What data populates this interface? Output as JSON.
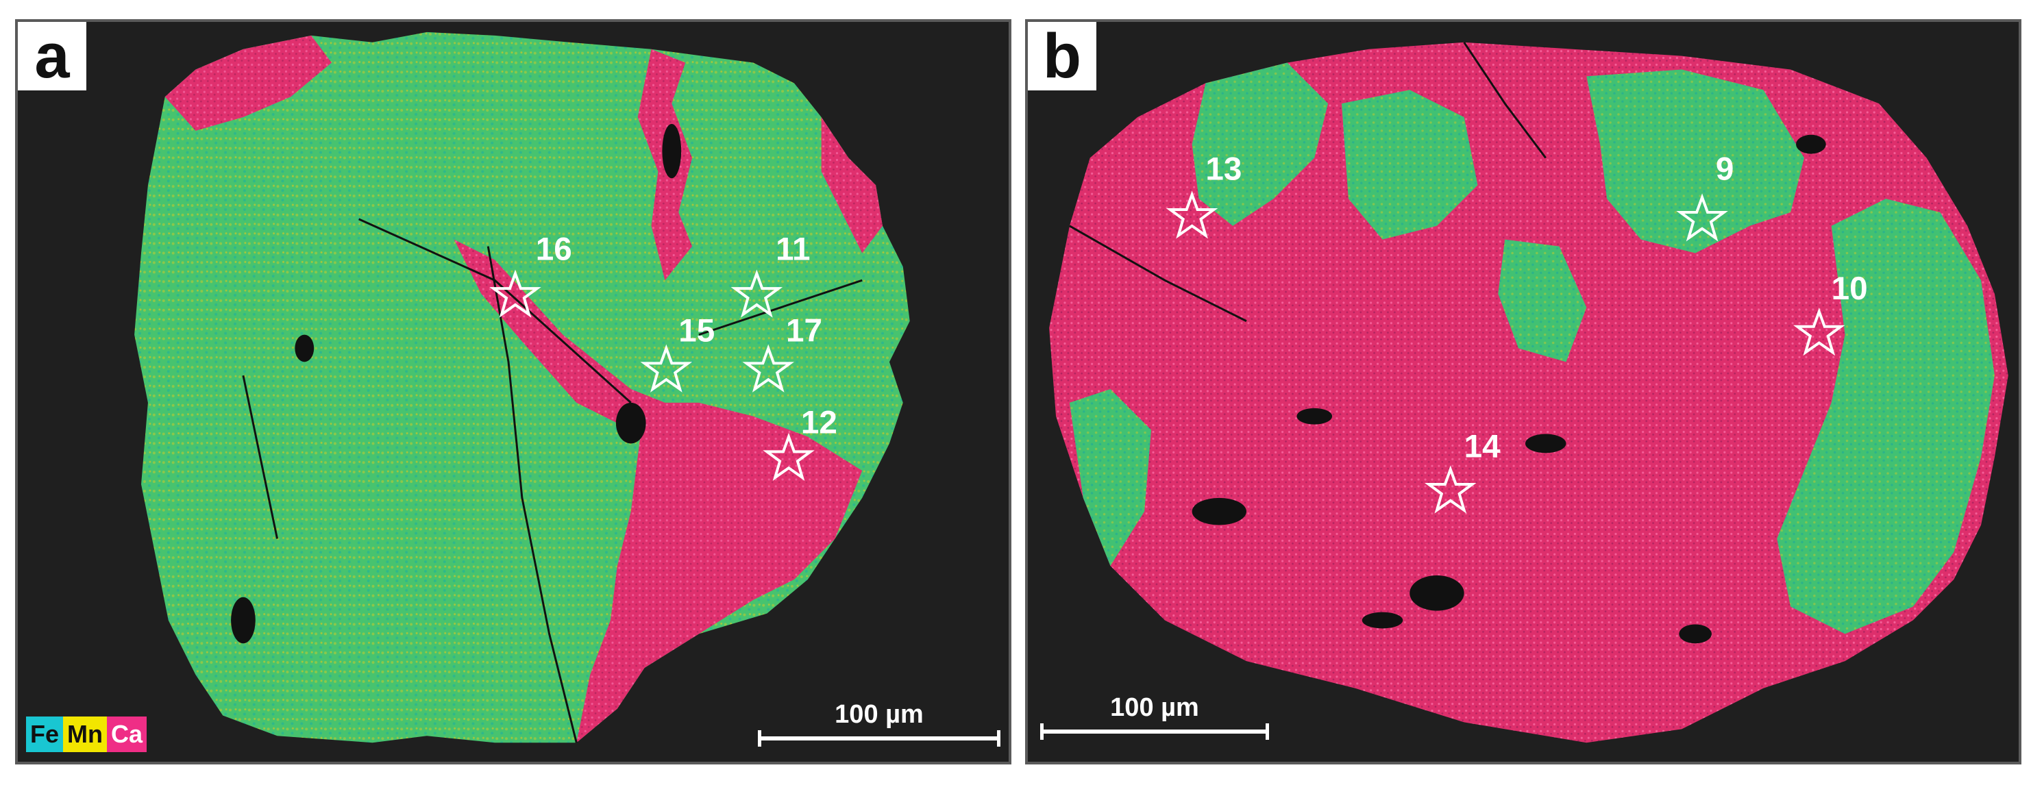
{
  "panels": [
    {
      "letter": "a",
      "scale_label": "100 µm",
      "legend": [
        "Fe",
        "Mn",
        "Ca"
      ],
      "markers": [
        "16",
        "11",
        "15",
        "17",
        "12"
      ]
    },
    {
      "letter": "b",
      "scale_label": "100 µm",
      "markers": [
        "13",
        "9",
        "10",
        "14"
      ]
    }
  ],
  "colors": {
    "background": "#1f1f1f",
    "fe_mn_phase": "#3cc67a",
    "ca_phase": "#e0306e",
    "fe": "#19c6d2",
    "mn": "#f2e600",
    "ca": "#ef2e86"
  }
}
